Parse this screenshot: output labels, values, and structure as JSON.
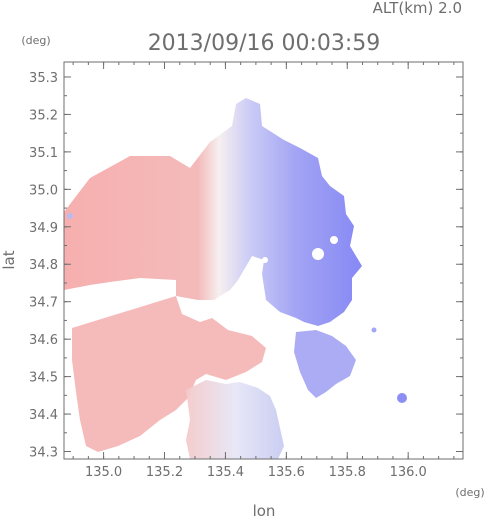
{
  "chart_data": {
    "type": "heatmap",
    "title": "2013/09/16 00:03:59",
    "subtitle": "ALT(km) 2.0",
    "xlabel": "lon",
    "ylabel": "lat",
    "x_unit": "(deg)",
    "y_unit": "(deg)",
    "xlim": [
      134.87,
      136.18
    ],
    "ylim": [
      34.28,
      35.34
    ],
    "x_ticks": [
      135.0,
      135.2,
      135.4,
      135.6,
      135.8,
      136.0
    ],
    "x_tick_labels": [
      "135.0",
      "135.2",
      "135.4",
      "135.6",
      "135.8",
      "136.0"
    ],
    "y_ticks": [
      34.3,
      34.4,
      34.5,
      34.6,
      34.7,
      34.8,
      34.9,
      35.0,
      35.1,
      35.2,
      35.3
    ],
    "y_tick_labels": [
      "34.3",
      "34.4",
      "34.5",
      "34.6",
      "34.7",
      "34.8",
      "34.9",
      "35.0",
      "35.1",
      "35.2",
      "35.3"
    ],
    "radar_center": [
      135.52,
      34.8
    ],
    "colors": {
      "approaching": "#7c7ef4",
      "receding": "#f4a4a4",
      "near_zero": "#f6eeee",
      "axis": "#6e6e6e"
    },
    "regions": [
      {
        "name": "west-north-receding",
        "center": [
          135.2,
          34.98
        ],
        "sign": "receding"
      },
      {
        "name": "east-approaching",
        "center": [
          135.7,
          34.85
        ],
        "sign": "approaching"
      },
      {
        "name": "southwest-receding",
        "center": [
          135.12,
          34.55
        ],
        "sign": "receding"
      },
      {
        "name": "south-mixed",
        "center": [
          135.45,
          34.38
        ],
        "sign": "mixed"
      },
      {
        "name": "southeast-approaching",
        "center": [
          135.8,
          34.5
        ],
        "sign": "approaching"
      }
    ]
  }
}
